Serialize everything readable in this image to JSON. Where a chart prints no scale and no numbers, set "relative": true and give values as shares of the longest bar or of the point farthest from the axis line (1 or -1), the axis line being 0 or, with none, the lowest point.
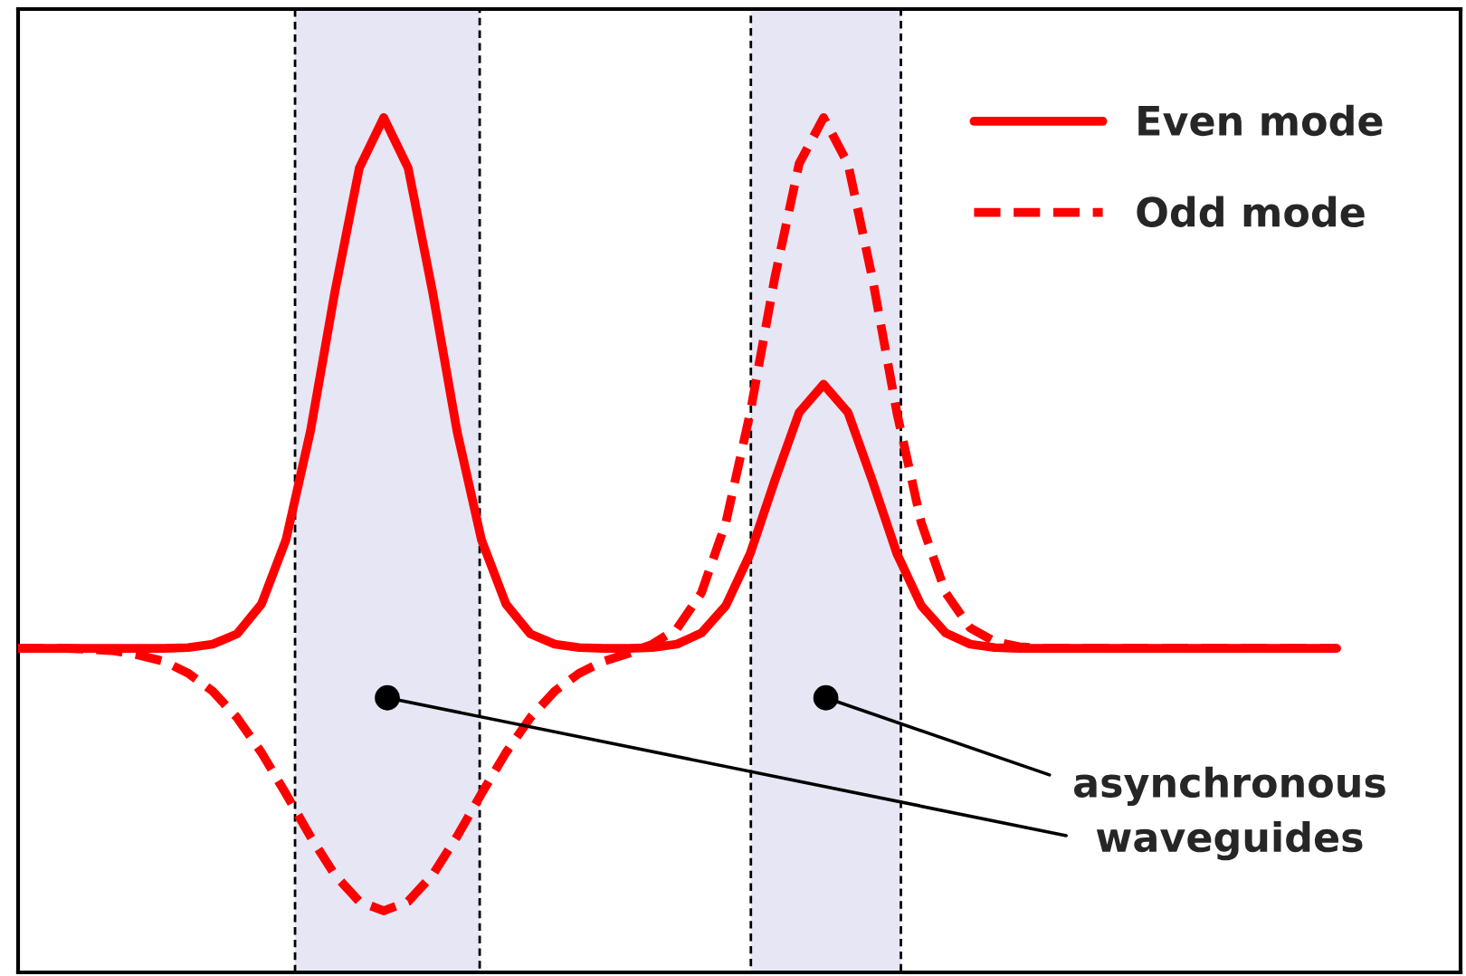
{
  "chart_data": {
    "type": "line",
    "relative": true,
    "categories": [
      null,
      null,
      null,
      null,
      null,
      null,
      null,
      null,
      null,
      null,
      null,
      null,
      null,
      null,
      null,
      null,
      null,
      null,
      null,
      null,
      null,
      null,
      null,
      null,
      null,
      null,
      null,
      null,
      null,
      null,
      null,
      null,
      null,
      null,
      null,
      null,
      null,
      null,
      null,
      null,
      null,
      null,
      null,
      null,
      null,
      null,
      null,
      null,
      null,
      null,
      null,
      null,
      null,
      null,
      null
    ],
    "series": [
      {
        "name": "Even mode",
        "color": "#ff0000",
        "line_style": "solid",
        "values": [
          0.379,
          0.379,
          0.379,
          0.379,
          0.379,
          0.379,
          0.379,
          0.38,
          0.384,
          0.396,
          0.431,
          0.506,
          0.633,
          0.796,
          0.941,
          1.0,
          0.941,
          0.796,
          0.633,
          0.506,
          0.431,
          0.396,
          0.384,
          0.38,
          0.379,
          0.379,
          0.38,
          0.384,
          0.397,
          0.429,
          0.49,
          0.575,
          0.655,
          0.688,
          0.655,
          0.575,
          0.49,
          0.429,
          0.397,
          0.384,
          0.38,
          0.379,
          0.379,
          0.379,
          0.379,
          0.379,
          0.379,
          0.379,
          0.379,
          0.379,
          0.379,
          0.379,
          0.379,
          0.379,
          0.379
        ]
      },
      {
        "name": "Odd mode",
        "color": "#ff0000",
        "line_style": "dashed",
        "values": [
          0.379,
          0.379,
          0.379,
          0.378,
          0.376,
          0.371,
          0.364,
          0.35,
          0.329,
          0.298,
          0.257,
          0.209,
          0.159,
          0.114,
          0.083,
          0.072,
          0.083,
          0.114,
          0.159,
          0.209,
          0.257,
          0.298,
          0.329,
          0.35,
          0.364,
          0.373,
          0.384,
          0.402,
          0.444,
          0.526,
          0.655,
          0.812,
          0.946,
          1.0,
          0.946,
          0.812,
          0.655,
          0.526,
          0.444,
          0.403,
          0.387,
          0.381,
          0.379,
          0.379,
          0.379,
          0.379,
          0.379,
          0.379,
          0.379,
          0.379,
          0.379,
          0.379,
          0.379,
          0.379,
          0.379
        ]
      }
    ],
    "annotations": [
      "asynchronous\nwaveguides"
    ],
    "legend": "top right"
  }
}
